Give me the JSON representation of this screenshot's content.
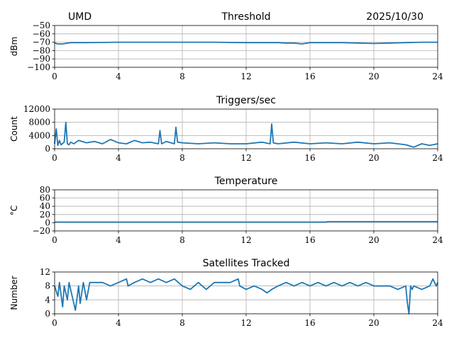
{
  "header": {
    "left": "UMD",
    "date": "2025/10/30"
  },
  "colors": {
    "line": "#1f77b4",
    "grid": "#b0b0b0",
    "axes": "#000000"
  },
  "chart_data": [
    {
      "type": "line",
      "title": "Threshold",
      "ylabel": "dBm",
      "xlim": [
        0,
        24
      ],
      "ylim": [
        -100,
        -50
      ],
      "xticks": [
        "0",
        "4",
        "8",
        "12",
        "16",
        "20",
        "24"
      ],
      "yticks": [
        "−50",
        "−60",
        "−70",
        "−80",
        "−90",
        "−100"
      ],
      "grid": true,
      "x": [
        0,
        0.2,
        0.5,
        1,
        2,
        4,
        6,
        8,
        10,
        12,
        13,
        14,
        14.5,
        15,
        15.5,
        16,
        18,
        19,
        20,
        21,
        22,
        23,
        24
      ],
      "values": [
        -71,
        -72,
        -72,
        -70.5,
        -70.5,
        -70,
        -70,
        -70,
        -70,
        -70.5,
        -70.5,
        -70.5,
        -71,
        -71,
        -72,
        -70.5,
        -70.5,
        -71,
        -71.5,
        -71,
        -70.5,
        -70,
        -70
      ]
    },
    {
      "type": "line",
      "title": "Triggers/sec",
      "ylabel": "Count",
      "xlim": [
        0,
        24
      ],
      "ylim": [
        0,
        12000
      ],
      "xticks": [
        "0",
        "4",
        "8",
        "12",
        "16",
        "20",
        "24"
      ],
      "yticks": [
        "12000",
        "8000",
        "4000",
        "0"
      ],
      "grid": true,
      "x": [
        0,
        0.1,
        0.2,
        0.3,
        0.4,
        0.6,
        0.7,
        0.8,
        0.9,
        1.0,
        1.2,
        1.5,
        2,
        2.5,
        3,
        3.5,
        4,
        4.5,
        5,
        5.5,
        6,
        6.5,
        6.6,
        6.7,
        7,
        7.5,
        7.6,
        7.7,
        8,
        9,
        10,
        11,
        12,
        13,
        13.5,
        13.6,
        13.7,
        14,
        15,
        16,
        17,
        18,
        19,
        20,
        21,
        22,
        22.5,
        23,
        23.5,
        24
      ],
      "values": [
        1500,
        6000,
        1000,
        2500,
        1200,
        2000,
        8000,
        1500,
        1200,
        2000,
        1500,
        2500,
        1800,
        2200,
        1500,
        2800,
        1800,
        1500,
        2500,
        1800,
        2000,
        1500,
        5500,
        1500,
        2200,
        1500,
        6500,
        2000,
        1800,
        1500,
        1800,
        1500,
        1500,
        2000,
        1500,
        7500,
        1800,
        1500,
        2000,
        1500,
        1800,
        1500,
        2000,
        1500,
        1800,
        1200,
        500,
        1500,
        1000,
        1500
      ]
    },
    {
      "type": "line",
      "title": "Temperature",
      "ylabel": "°C",
      "xlim": [
        0,
        24
      ],
      "ylim": [
        -20,
        80
      ],
      "xticks": [
        "0",
        "4",
        "8",
        "12",
        "16",
        "20",
        "24"
      ],
      "yticks": [
        "80",
        "60",
        "40",
        "20",
        "0",
        "−20"
      ],
      "grid": true,
      "x": [
        0,
        17,
        17.1,
        24
      ],
      "values": [
        1.5,
        1.5,
        2.5,
        2.5
      ]
    },
    {
      "type": "line",
      "title": "Satellites Tracked",
      "ylabel": "Number",
      "xlim": [
        0,
        24
      ],
      "ylim": [
        0,
        12
      ],
      "xticks": [
        "0",
        "4",
        "8",
        "12",
        "16",
        "20",
        "24"
      ],
      "yticks": [
        "12",
        "8",
        "4",
        "0"
      ],
      "grid": true,
      "x": [
        0,
        0.2,
        0.3,
        0.5,
        0.6,
        0.8,
        0.9,
        1.1,
        1.3,
        1.5,
        1.6,
        1.8,
        2.0,
        2.2,
        2.5,
        3,
        3.5,
        4,
        4.5,
        4.6,
        5,
        5.5,
        6,
        6.5,
        7,
        7.5,
        8,
        8.5,
        9,
        9.5,
        10,
        10.5,
        11,
        11.5,
        11.6,
        12,
        12.5,
        13,
        13.3,
        13.6,
        14,
        14.5,
        15,
        15.5,
        16,
        16.5,
        17,
        17.5,
        18,
        18.5,
        19,
        19.5,
        20,
        20.5,
        21,
        21.5,
        22,
        22.1,
        22.2,
        22.3,
        22.4,
        22.5,
        23,
        23.5,
        23.7,
        23.9,
        24
      ],
      "values": [
        8,
        5,
        9,
        2,
        8,
        4,
        9,
        5,
        1,
        8,
        3,
        9,
        4,
        9,
        9,
        9,
        8,
        9,
        10,
        8,
        9,
        10,
        9,
        10,
        9,
        10,
        8,
        7,
        9,
        7,
        9,
        9,
        9,
        10,
        8,
        7,
        8,
        7,
        6,
        7,
        8,
        9,
        8,
        9,
        8,
        9,
        8,
        9,
        8,
        9,
        8,
        9,
        8,
        8,
        8,
        7,
        8,
        3,
        0,
        8,
        7,
        8,
        7,
        8,
        10,
        8,
        9
      ]
    }
  ]
}
